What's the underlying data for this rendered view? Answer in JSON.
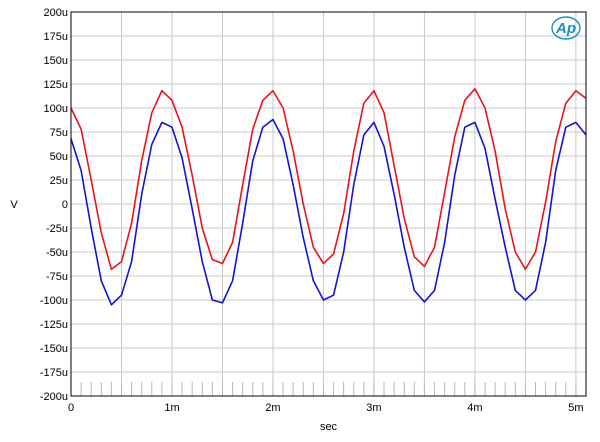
{
  "chart_data": {
    "type": "line",
    "xlabel": "sec",
    "ylabel": "V",
    "xlim": [
      0,
      0.0051
    ],
    "ylim": [
      -0.0002,
      0.0002
    ],
    "x_ticks": [
      {
        "value": 0,
        "label": "0"
      },
      {
        "value": 0.001,
        "label": "1m"
      },
      {
        "value": 0.002,
        "label": "2m"
      },
      {
        "value": 0.003,
        "label": "3m"
      },
      {
        "value": 0.004,
        "label": "4m"
      },
      {
        "value": 0.005,
        "label": "5m"
      }
    ],
    "y_ticks": [
      {
        "value": 0.0002,
        "label": "200u"
      },
      {
        "value": 0.000175,
        "label": "175u"
      },
      {
        "value": 0.00015,
        "label": "150u"
      },
      {
        "value": 0.000125,
        "label": "125u"
      },
      {
        "value": 0.0001,
        "label": "100u"
      },
      {
        "value": 7.5e-05,
        "label": "75u"
      },
      {
        "value": 5e-05,
        "label": "50u"
      },
      {
        "value": 2.5e-05,
        "label": "25u"
      },
      {
        "value": 0,
        "label": "0"
      },
      {
        "value": -2.5e-05,
        "label": "-25u"
      },
      {
        "value": -5e-05,
        "label": "-50u"
      },
      {
        "value": -7.5e-05,
        "label": "-75u"
      },
      {
        "value": -0.0001,
        "label": "-100u"
      },
      {
        "value": -0.000125,
        "label": "-125u"
      },
      {
        "value": -0.00015,
        "label": "-150u"
      },
      {
        "value": -0.000175,
        "label": "-175u"
      },
      {
        "value": -0.0002,
        "label": "-200u"
      }
    ],
    "grid": true,
    "series": [
      {
        "color": "#e8141c",
        "x": [
          0,
          0.0001,
          0.0002,
          0.0003,
          0.0004,
          0.0005,
          0.0006,
          0.0007,
          0.0008,
          0.0009,
          0.001,
          0.0011,
          0.0012,
          0.0013,
          0.0014,
          0.0015,
          0.0016,
          0.0017,
          0.0018,
          0.0019,
          0.002,
          0.0021,
          0.0022,
          0.0023,
          0.0024,
          0.0025,
          0.0026,
          0.0027,
          0.0028,
          0.0029,
          0.003,
          0.0031,
          0.0032,
          0.0033,
          0.0034,
          0.0035,
          0.0036,
          0.0037,
          0.0038,
          0.0039,
          0.004,
          0.0041,
          0.0042,
          0.0043,
          0.0044,
          0.0045,
          0.0046,
          0.0047,
          0.0048,
          0.0049,
          0.005,
          0.0051
        ],
        "y": [
          0.0001,
          7.8e-05,
          2.5e-05,
          -3e-05,
          -6.8e-05,
          -6e-05,
          -2e-05,
          4.5e-05,
          9.5e-05,
          0.000118,
          0.000108,
          8e-05,
          3e-05,
          -2.5e-05,
          -5.8e-05,
          -6.2e-05,
          -4e-05,
          2e-05,
          7.8e-05,
          0.000108,
          0.000118,
          0.0001,
          5.5e-05,
          0,
          -4.5e-05,
          -6.2e-05,
          -5.2e-05,
          -1e-05,
          5.5e-05,
          0.000105,
          0.000118,
          9.5e-05,
          4e-05,
          -1.5e-05,
          -5.5e-05,
          -6.5e-05,
          -4.5e-05,
          1.2e-05,
          7e-05,
          0.000108,
          0.00012,
          0.0001,
          5.5e-05,
          -5e-06,
          -5e-05,
          -6.8e-05,
          -5e-05,
          2e-06,
          6.5e-05,
          0.000105,
          0.000118,
          0.00011
        ]
      },
      {
        "color": "#1414d2",
        "x": [
          0,
          0.0001,
          0.0002,
          0.0003,
          0.0004,
          0.0005,
          0.0006,
          0.0007,
          0.0008,
          0.0009,
          0.001,
          0.0011,
          0.0012,
          0.0013,
          0.0014,
          0.0015,
          0.0016,
          0.0017,
          0.0018,
          0.0019,
          0.002,
          0.0021,
          0.0022,
          0.0023,
          0.0024,
          0.0025,
          0.0026,
          0.0027,
          0.0028,
          0.0029,
          0.003,
          0.0031,
          0.0032,
          0.0033,
          0.0034,
          0.0035,
          0.0036,
          0.0037,
          0.0038,
          0.0039,
          0.004,
          0.0041,
          0.0042,
          0.0043,
          0.0044,
          0.0045,
          0.0046,
          0.0047,
          0.0048,
          0.0049,
          0.005,
          0.0051
        ],
        "y": [
          6.8e-05,
          3.5e-05,
          -2.5e-05,
          -8e-05,
          -0.000105,
          -9.5e-05,
          -6e-05,
          1e-05,
          6.2e-05,
          8.5e-05,
          8e-05,
          4.8e-05,
          -5e-06,
          -6e-05,
          -0.0001,
          -0.000103,
          -8e-05,
          -2e-05,
          4.5e-05,
          8e-05,
          8.8e-05,
          6.8e-05,
          2e-05,
          -3.5e-05,
          -8e-05,
          -0.0001,
          -9.5e-05,
          -5e-05,
          2e-05,
          7.2e-05,
          8.5e-05,
          6e-05,
          1e-05,
          -4.5e-05,
          -9e-05,
          -0.000102,
          -9e-05,
          -4e-05,
          3e-05,
          8e-05,
          8.5e-05,
          5.8e-05,
          5e-06,
          -4.5e-05,
          -9e-05,
          -0.0001,
          -9e-05,
          -4e-05,
          3.5e-05,
          8e-05,
          8.5e-05,
          7.2e-05
        ]
      }
    ]
  },
  "logo": {
    "text": "Ap",
    "color": "#1a8fc1"
  }
}
